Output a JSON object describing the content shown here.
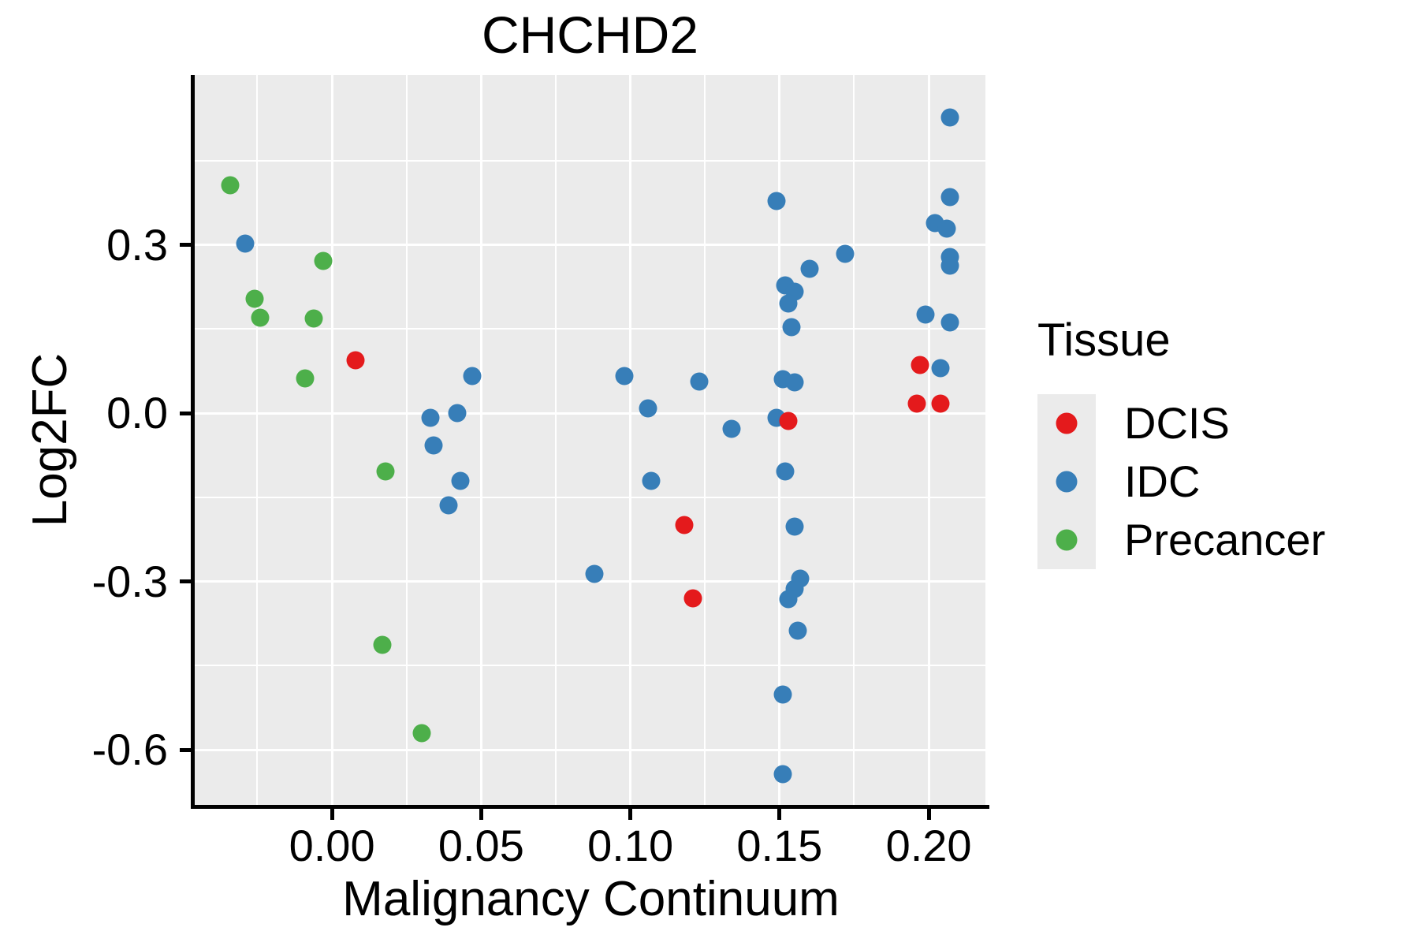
{
  "chart_data": {
    "type": "scatter",
    "title": "CHCHD2",
    "xlabel": "Malignancy Continuum",
    "ylabel": "Log2FC",
    "legend_title": "Tissue",
    "legend_position": "right",
    "grid": "on",
    "panel_background": "#EBEBEB",
    "gridline_color": "#FFFFFF",
    "xlim": [
      -0.046,
      0.219
    ],
    "ylim": [
      -0.698,
      0.603
    ],
    "x_ticks": [
      {
        "value": 0.0,
        "label": "0.00"
      },
      {
        "value": 0.05,
        "label": "0.05"
      },
      {
        "value": 0.1,
        "label": "0.10"
      },
      {
        "value": 0.15,
        "label": "0.15"
      },
      {
        "value": 0.2,
        "label": "0.20"
      }
    ],
    "y_ticks": [
      {
        "value": 0.3,
        "label": "0.3"
      },
      {
        "value": 0.0,
        "label": "0.0"
      },
      {
        "value": -0.3,
        "label": "-0.3"
      },
      {
        "value": -0.6,
        "label": "-0.6"
      }
    ],
    "x_minor_ticks": [
      -0.025,
      0.025,
      0.075,
      0.125,
      0.175
    ],
    "y_minor_ticks": [
      0.45,
      0.15,
      -0.15,
      -0.45
    ],
    "series": [
      {
        "name": "DCIS",
        "color": "#E41A1C",
        "z": 3,
        "points": [
          [
            0.008,
            0.094
          ],
          [
            0.118,
            -0.199
          ],
          [
            0.121,
            -0.33
          ],
          [
            0.153,
            -0.014
          ],
          [
            0.197,
            0.086
          ],
          [
            0.196,
            0.017
          ],
          [
            0.204,
            0.017
          ]
        ]
      },
      {
        "name": "IDC",
        "color": "#377EB8",
        "z": 2,
        "points": [
          [
            -0.029,
            0.302
          ],
          [
            0.047,
            0.067
          ],
          [
            0.042,
            0.0
          ],
          [
            0.033,
            -0.008
          ],
          [
            0.034,
            -0.058
          ],
          [
            0.043,
            -0.121
          ],
          [
            0.039,
            -0.164
          ],
          [
            0.098,
            0.067
          ],
          [
            0.106,
            0.008
          ],
          [
            0.123,
            0.056
          ],
          [
            0.107,
            -0.121
          ],
          [
            0.088,
            -0.287
          ],
          [
            0.134,
            -0.028
          ],
          [
            0.149,
            0.378
          ],
          [
            0.152,
            0.228
          ],
          [
            0.155,
            0.216
          ],
          [
            0.153,
            0.195
          ],
          [
            0.154,
            0.153
          ],
          [
            0.151,
            0.06
          ],
          [
            0.155,
            0.055
          ],
          [
            0.149,
            -0.008
          ],
          [
            0.152,
            -0.103
          ],
          [
            0.155,
            -0.202
          ],
          [
            0.157,
            -0.295
          ],
          [
            0.155,
            -0.313
          ],
          [
            0.153,
            -0.331
          ],
          [
            0.156,
            -0.388
          ],
          [
            0.151,
            -0.501
          ],
          [
            0.151,
            -0.643
          ],
          [
            0.172,
            0.284
          ],
          [
            0.16,
            0.258
          ],
          [
            0.199,
            0.176
          ],
          [
            0.207,
            0.527
          ],
          [
            0.207,
            0.385
          ],
          [
            0.202,
            0.339
          ],
          [
            0.206,
            0.329
          ],
          [
            0.207,
            0.278
          ],
          [
            0.207,
            0.263
          ],
          [
            0.207,
            0.162
          ],
          [
            0.204,
            0.081
          ]
        ]
      },
      {
        "name": "Precancer",
        "color": "#4DAF4A",
        "z": 2,
        "points": [
          [
            -0.034,
            0.406
          ],
          [
            -0.003,
            0.271
          ],
          [
            -0.026,
            0.204
          ],
          [
            -0.024,
            0.17
          ],
          [
            -0.006,
            0.169
          ],
          [
            -0.009,
            0.062
          ],
          [
            0.018,
            -0.104
          ],
          [
            0.017,
            -0.413
          ],
          [
            0.03,
            -0.57
          ]
        ]
      }
    ]
  }
}
